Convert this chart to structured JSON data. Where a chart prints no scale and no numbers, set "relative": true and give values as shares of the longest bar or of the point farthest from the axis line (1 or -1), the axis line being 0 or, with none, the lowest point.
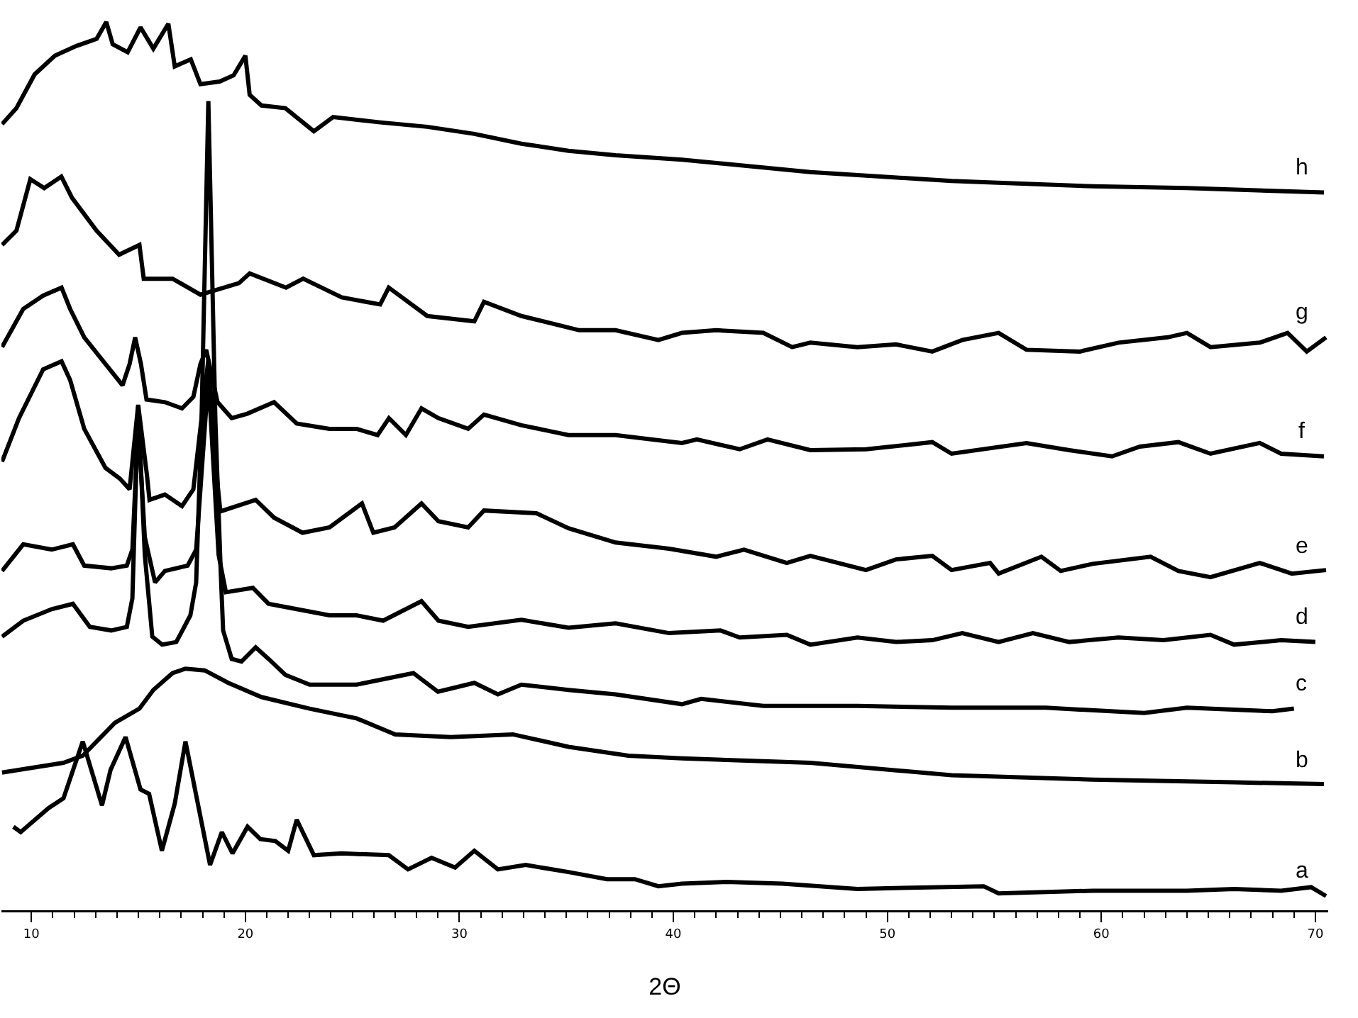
{
  "chart_data": {
    "type": "line",
    "relative": true,
    "xlabel": "2Θ",
    "xlim": [
      8.6,
      70.6
    ],
    "xticks": [
      10,
      20,
      30,
      40,
      50,
      60,
      70,
      {
        "value": 11,
        "label": null
      },
      {
        "value": 12,
        "label": null
      },
      {
        "value": 13,
        "label": null
      },
      {
        "value": 14,
        "label": null
      },
      {
        "value": 15,
        "label": null
      },
      {
        "value": 16,
        "label": null
      },
      {
        "value": 17,
        "label": null
      },
      {
        "value": 18,
        "label": null
      },
      {
        "value": 19,
        "label": null
      },
      {
        "value": 21,
        "label": null
      },
      {
        "value": 22,
        "label": null
      },
      {
        "value": 23,
        "label": null
      },
      {
        "value": 24,
        "label": null
      },
      {
        "value": 25,
        "label": null
      },
      {
        "value": 26,
        "label": null
      },
      {
        "value": 27,
        "label": null
      },
      {
        "value": 28,
        "label": null
      },
      {
        "value": 29,
        "label": null
      },
      {
        "value": 31,
        "label": null
      },
      {
        "value": 32,
        "label": null
      },
      {
        "value": 33,
        "label": null
      },
      {
        "value": 34,
        "label": null
      },
      {
        "value": 35,
        "label": null
      },
      {
        "value": 36,
        "label": null
      },
      {
        "value": 37,
        "label": null
      },
      {
        "value": 38,
        "label": null
      },
      {
        "value": 39,
        "label": null
      },
      {
        "value": 41,
        "label": null
      },
      {
        "value": 42,
        "label": null
      },
      {
        "value": 43,
        "label": null
      },
      {
        "value": 44,
        "label": null
      },
      {
        "value": 45,
        "label": null
      },
      {
        "value": 46,
        "label": null
      },
      {
        "value": 47,
        "label": null
      },
      {
        "value": 48,
        "label": null
      },
      {
        "value": 49,
        "label": null
      },
      {
        "value": 51,
        "label": null
      },
      {
        "value": 52,
        "label": null
      },
      {
        "value": 53,
        "label": null
      },
      {
        "value": 54,
        "label": null
      },
      {
        "value": 55,
        "label": null
      },
      {
        "value": 56,
        "label": null
      },
      {
        "value": 57,
        "label": null
      },
      {
        "value": 58,
        "label": null
      },
      {
        "value": 59,
        "label": null
      },
      {
        "value": 61,
        "label": null
      },
      {
        "value": 62,
        "label": null
      },
      {
        "value": 63,
        "label": null
      },
      {
        "value": 64,
        "label": null
      },
      {
        "value": 65,
        "label": null
      },
      {
        "value": 66,
        "label": null
      },
      {
        "value": 67,
        "label": null
      },
      {
        "value": 68,
        "label": null
      },
      {
        "value": 69,
        "label": null
      }
    ],
    "tick_labels": "x",
    "grid": false,
    "legend": false,
    "marker": "none",
    "line_style": "solid",
    "series": [
      {
        "name": "a",
        "color": "#000000",
        "x": [
          9.16,
          9.5,
          10.8,
          11.5,
          12.4,
          13.3,
          13.7,
          14.4,
          15.1,
          15.5,
          16.1,
          16.7,
          17.2,
          18.35,
          18.9,
          19.4,
          20.1,
          20.7,
          21.4,
          22.0,
          22.4,
          23.2,
          24.5,
          26.7,
          27.6,
          28.7,
          29.8,
          30.7,
          31.8,
          33.1,
          35.1,
          36.9,
          38.2,
          39.3,
          40.4,
          42.5,
          45.1,
          48.6,
          54.5,
          55.2,
          59.6,
          64.0,
          66.2,
          68.4,
          69.8,
          70.5
        ],
        "values": [
          0.094,
          0.088,
          0.115,
          0.126,
          0.19,
          0.118,
          0.158,
          0.195,
          0.136,
          0.131,
          0.067,
          0.12,
          0.19,
          0.051,
          0.088,
          0.064,
          0.094,
          0.08,
          0.078,
          0.067,
          0.102,
          0.062,
          0.064,
          0.062,
          0.046,
          0.059,
          0.048,
          0.067,
          0.046,
          0.051,
          0.043,
          0.035,
          0.035,
          0.027,
          0.03,
          0.032,
          0.03,
          0.024,
          0.027,
          0.019,
          0.022,
          0.022,
          0.024,
          0.022,
          0.026,
          0.016
        ]
      },
      {
        "name": "b",
        "color": "#000000",
        "x": [
          8.63,
          11.5,
          12.4,
          13.9,
          15.05,
          15.7,
          16.6,
          17.2,
          18.1,
          19.2,
          20.75,
          23.0,
          25.2,
          27.0,
          29.6,
          32.5,
          35.1,
          37.9,
          40.4,
          46.4,
          53.0,
          59.6,
          66.2,
          70.4
        ],
        "values": [
          0.155,
          0.166,
          0.174,
          0.211,
          0.227,
          0.248,
          0.267,
          0.272,
          0.27,
          0.256,
          0.24,
          0.227,
          0.216,
          0.198,
          0.195,
          0.198,
          0.184,
          0.174,
          0.171,
          0.166,
          0.152,
          0.147,
          0.144,
          0.142
        ]
      },
      {
        "name": "c",
        "color": "#000000",
        "x": [
          8.63,
          9.62,
          10.95,
          11.94,
          12.73,
          13.73,
          14.46,
          14.72,
          14.99,
          15.3,
          15.65,
          16.11,
          16.77,
          17.43,
          17.7,
          17.95,
          18.27,
          18.6,
          18.85,
          18.96,
          19.36,
          19.82,
          20.48,
          21.08,
          21.87,
          23.0,
          25.2,
          27.85,
          29.0,
          30.7,
          31.8,
          32.9,
          35.1,
          37.3,
          40.4,
          41.3,
          44.2,
          48.6,
          53.0,
          57.4,
          62.0,
          64.0,
          68.0,
          69.0
        ],
        "values": [
          0.308,
          0.326,
          0.339,
          0.345,
          0.319,
          0.315,
          0.319,
          0.351,
          0.567,
          0.4,
          0.308,
          0.299,
          0.302,
          0.332,
          0.369,
          0.55,
          0.911,
          0.55,
          0.38,
          0.315,
          0.283,
          0.28,
          0.296,
          0.283,
          0.265,
          0.254,
          0.254,
          0.267,
          0.246,
          0.256,
          0.243,
          0.254,
          0.248,
          0.243,
          0.232,
          0.238,
          0.23,
          0.23,
          0.228,
          0.228,
          0.222,
          0.228,
          0.224,
          0.227
        ]
      },
      {
        "name": "d",
        "color": "#000000",
        "x": [
          8.63,
          9.62,
          10.95,
          11.94,
          12.47,
          13.73,
          14.46,
          14.72,
          14.99,
          15.3,
          15.78,
          16.24,
          17.3,
          17.7,
          18.27,
          18.75,
          19.09,
          20.35,
          21.08,
          22.4,
          23.93,
          25.19,
          26.44,
          28.23,
          29.02,
          30.41,
          32.9,
          35.1,
          37.3,
          39.8,
          42.2,
          43.1,
          45.3,
          46.4,
          48.6,
          50.4,
          52.1,
          53.5,
          55.2,
          56.8,
          58.5,
          60.8,
          62.9,
          65.1,
          66.2,
          68.4,
          70.0
        ],
        "values": [
          0.382,
          0.412,
          0.406,
          0.412,
          0.388,
          0.385,
          0.388,
          0.406,
          0.55,
          0.42,
          0.369,
          0.382,
          0.388,
          0.406,
          0.6,
          0.4,
          0.358,
          0.363,
          0.345,
          0.339,
          0.332,
          0.332,
          0.326,
          0.348,
          0.326,
          0.319,
          0.327,
          0.318,
          0.323,
          0.312,
          0.315,
          0.307,
          0.31,
          0.299,
          0.307,
          0.302,
          0.304,
          0.312,
          0.302,
          0.312,
          0.302,
          0.307,
          0.304,
          0.31,
          0.299,
          0.304,
          0.302
        ]
      },
      {
        "name": "e",
        "color": "#000000",
        "x": [
          8.63,
          9.42,
          10.55,
          11.41,
          11.81,
          12.47,
          13.46,
          14.13,
          14.59,
          14.99,
          15.4,
          15.52,
          16.24,
          17.04,
          17.57,
          18.27,
          18.7,
          18.83,
          20.48,
          21.34,
          22.67,
          23.93,
          25.45,
          25.98,
          26.97,
          28.23,
          29.02,
          30.41,
          31.15,
          33.6,
          35.1,
          37.3,
          39.8,
          42.0,
          43.3,
          45.3,
          46.4,
          49.0,
          50.4,
          52.1,
          53.0,
          54.8,
          55.2,
          57.2,
          58.1,
          59.6,
          62.3,
          63.6,
          65.1,
          67.4,
          68.9,
          70.5
        ],
        "values": [
          0.505,
          0.554,
          0.609,
          0.618,
          0.597,
          0.542,
          0.498,
          0.486,
          0.474,
          0.569,
          0.49,
          0.462,
          0.468,
          0.455,
          0.474,
          0.62,
          0.48,
          0.449,
          0.462,
          0.442,
          0.425,
          0.431,
          0.458,
          0.425,
          0.431,
          0.458,
          0.438,
          0.431,
          0.45,
          0.447,
          0.43,
          0.414,
          0.407,
          0.398,
          0.406,
          0.391,
          0.399,
          0.383,
          0.395,
          0.399,
          0.383,
          0.391,
          0.379,
          0.398,
          0.382,
          0.39,
          0.398,
          0.382,
          0.375,
          0.391,
          0.379,
          0.383
        ]
      },
      {
        "name": "f",
        "color": "#000000",
        "x": [
          8.63,
          9.62,
          10.55,
          11.41,
          11.81,
          12.47,
          13.46,
          14.26,
          14.59,
          14.85,
          15.12,
          15.38,
          16.24,
          17.04,
          17.57,
          17.9,
          18.17,
          18.7,
          19.36,
          20.09,
          21.34,
          22.4,
          23.93,
          25.19,
          26.18,
          26.71,
          27.5,
          28.23,
          29.02,
          30.41,
          31.15,
          32.9,
          35.1,
          37.3,
          40.4,
          41.1,
          43.1,
          44.4,
          46.4,
          49.0,
          52.1,
          53.0,
          56.5,
          58.5,
          60.5,
          61.8,
          63.6,
          65.1,
          67.4,
          68.4,
          70.4
        ],
        "values": [
          0.634,
          0.677,
          0.692,
          0.701,
          0.677,
          0.645,
          0.615,
          0.591,
          0.615,
          0.645,
          0.615,
          0.575,
          0.572,
          0.565,
          0.578,
          0.615,
          0.631,
          0.572,
          0.554,
          0.559,
          0.572,
          0.548,
          0.542,
          0.542,
          0.535,
          0.554,
          0.535,
          0.565,
          0.554,
          0.542,
          0.558,
          0.546,
          0.535,
          0.535,
          0.526,
          0.53,
          0.519,
          0.53,
          0.518,
          0.519,
          0.527,
          0.514,
          0.526,
          0.518,
          0.511,
          0.522,
          0.527,
          0.514,
          0.526,
          0.514,
          0.511
        ]
      },
      {
        "name": "g",
        "color": "#000000",
        "x": [
          8.63,
          9.3,
          9.95,
          10.6,
          11.4,
          11.9,
          13.05,
          14.1,
          15.05,
          15.25,
          16.6,
          17.9,
          19.7,
          20.2,
          21.9,
          22.7,
          24.5,
          26.3,
          26.7,
          28.5,
          30.7,
          31.15,
          32.9,
          35.6,
          37.3,
          39.3,
          40.4,
          42.0,
          44.2,
          45.55,
          46.4,
          48.6,
          50.4,
          52.1,
          53.5,
          55.2,
          56.5,
          59.0,
          60.8,
          63.1,
          64.0,
          65.1,
          67.4,
          68.7,
          69.6,
          70.5
        ],
        "values": [
          0.749,
          0.765,
          0.823,
          0.813,
          0.826,
          0.802,
          0.765,
          0.738,
          0.749,
          0.711,
          0.711,
          0.693,
          0.706,
          0.717,
          0.701,
          0.711,
          0.69,
          0.682,
          0.701,
          0.669,
          0.663,
          0.685,
          0.669,
          0.653,
          0.653,
          0.642,
          0.65,
          0.653,
          0.65,
          0.634,
          0.639,
          0.634,
          0.637,
          0.629,
          0.642,
          0.65,
          0.631,
          0.629,
          0.639,
          0.645,
          0.65,
          0.634,
          0.639,
          0.65,
          0.629,
          0.645
        ]
      },
      {
        "name": "h",
        "color": "#000000",
        "x": [
          8.63,
          9.3,
          10.15,
          11.1,
          12.1,
          13.05,
          13.5,
          13.8,
          14.5,
          15.1,
          15.7,
          16.4,
          16.7,
          17.45,
          17.9,
          18.8,
          19.45,
          20.0,
          20.2,
          20.75,
          21.87,
          23.2,
          24.1,
          26.3,
          28.5,
          30.7,
          32.9,
          35.1,
          37.3,
          40.4,
          46.4,
          53.0,
          59.6,
          64.0,
          70.4
        ],
        "values": [
          0.885,
          0.903,
          0.941,
          0.962,
          0.973,
          0.981,
          1.0,
          0.975,
          0.966,
          0.994,
          0.97,
          0.998,
          0.95,
          0.958,
          0.93,
          0.933,
          0.94,
          0.962,
          0.918,
          0.906,
          0.903,
          0.877,
          0.893,
          0.887,
          0.882,
          0.874,
          0.863,
          0.855,
          0.85,
          0.845,
          0.831,
          0.821,
          0.815,
          0.813,
          0.808
        ]
      }
    ]
  }
}
